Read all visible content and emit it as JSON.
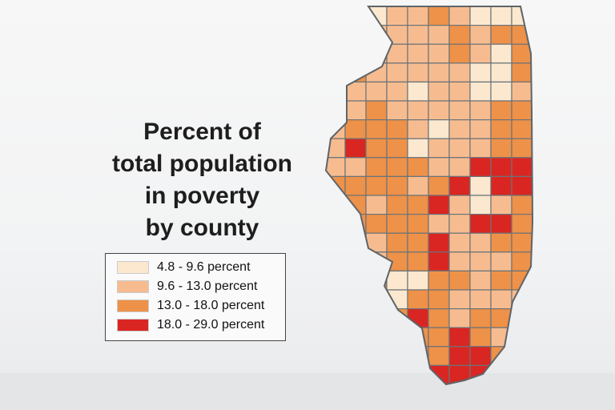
{
  "title_lines": [
    "Percent of",
    "total population",
    "in poverty",
    "by county"
  ],
  "legend": [
    {
      "label": "4.8 - 9.6 percent",
      "color": "#fbe8cf"
    },
    {
      "label": "9.6 - 13.0 percent",
      "color": "#f6bc90"
    },
    {
      "label": "13.0 - 18.0 percent",
      "color": "#ee9149"
    },
    {
      "label": "18.0 - 29.0 percent",
      "color": "#da2622"
    }
  ],
  "county_class_grid": [
    [
      0,
      0,
      0,
      1,
      1,
      2,
      1,
      0,
      0,
      0
    ],
    [
      1,
      1,
      1,
      1,
      1,
      1,
      2,
      1,
      2,
      2
    ],
    [
      1,
      1,
      1,
      1,
      1,
      1,
      2,
      1,
      0,
      2
    ],
    [
      2,
      2,
      1,
      1,
      1,
      1,
      1,
      0,
      0,
      2
    ],
    [
      1,
      1,
      1,
      1,
      0,
      1,
      1,
      0,
      0,
      1
    ],
    [
      1,
      1,
      2,
      1,
      1,
      1,
      1,
      1,
      2,
      2
    ],
    [
      1,
      2,
      2,
      2,
      1,
      0,
      1,
      1,
      2,
      2
    ],
    [
      1,
      3,
      2,
      2,
      0,
      1,
      1,
      1,
      2,
      2
    ],
    [
      1,
      1,
      2,
      2,
      2,
      1,
      1,
      3,
      3,
      3
    ],
    [
      2,
      2,
      2,
      2,
      1,
      2,
      3,
      0,
      3,
      3
    ],
    [
      2,
      2,
      1,
      2,
      2,
      3,
      1,
      0,
      1,
      2
    ],
    [
      2,
      2,
      2,
      2,
      2,
      1,
      1,
      3,
      3,
      2
    ],
    [
      2,
      1,
      1,
      2,
      2,
      3,
      1,
      1,
      2,
      2
    ],
    [
      1,
      1,
      1,
      2,
      2,
      3,
      1,
      1,
      1,
      2
    ],
    [
      1,
      2,
      2,
      0,
      0,
      2,
      2,
      1,
      2,
      2
    ],
    [
      0,
      0,
      2,
      0,
      2,
      2,
      1,
      1,
      1,
      1
    ],
    [
      2,
      2,
      2,
      2,
      3,
      2,
      1,
      2,
      2,
      1
    ],
    [
      2,
      2,
      2,
      3,
      2,
      2,
      3,
      2,
      1,
      1
    ],
    [
      2,
      2,
      2,
      2,
      2,
      2,
      3,
      3,
      2,
      2
    ],
    [
      3,
      3,
      3,
      3,
      3,
      3,
      3,
      3,
      2,
      2
    ]
  ]
}
